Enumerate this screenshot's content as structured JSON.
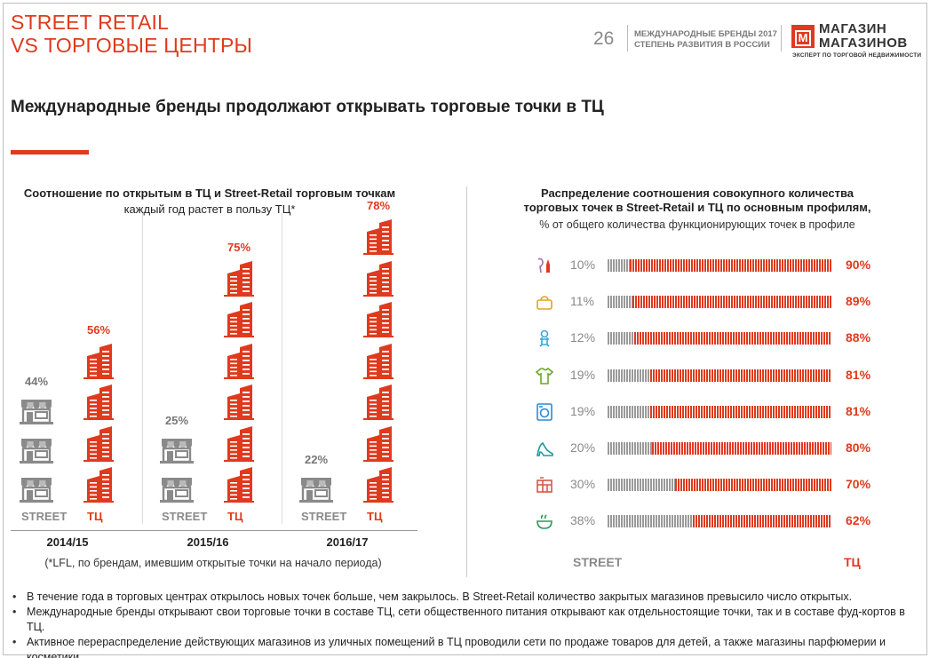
{
  "header": {
    "title_line1": "STREET RETAIL",
    "title_line2": "VS ТОРГОВЫЕ ЦЕНТРЫ",
    "page_number": "26",
    "report_line1": "МЕЖДУНАРОДНЫЕ БРЕНДЫ 2017",
    "report_line2": "СТЕПЕНЬ РАЗВИТИЯ В РОССИИ",
    "logo_letter": "М",
    "logo_line1": "МАГАЗИН",
    "logo_line2": "МАГАЗИНОВ",
    "logo_tagline": "ЭКСПЕРТ ПО ТОРГОВОЙ НЕДВИЖИМОСТИ"
  },
  "headline": "Международные бренды продолжают открывать торговые точки в ТЦ",
  "colors": {
    "accent": "#e03a1e",
    "grey": "#8a8a8a"
  },
  "left_chart": {
    "title": "Соотношение по открытым в ТЦ и Street-Retail торговым точкам",
    "subtitle": "каждый год растет в пользу ТЦ*",
    "street_label": "STREET",
    "tc_label": "ТЦ",
    "footnote": "(*LFL, по брендам, имевшим открытые точки на начало периода)"
  },
  "right_chart": {
    "title_line1": "Распределение соотношения совокупного количества",
    "title_line2": "торговых точек в Street-Retail и ТЦ по основным профилям,",
    "subtitle": "% от общего количества функционирующих точек в профиле",
    "street_label": "STREET",
    "tc_label": "ТЦ"
  },
  "chart_data": [
    {
      "type": "bar",
      "title": "Соотношение по открытым в ТЦ и Street-Retail торговым точкам",
      "categories": [
        "2014/15",
        "2015/16",
        "2016/17"
      ],
      "series": [
        {
          "name": "STREET",
          "values": [
            44,
            25,
            22
          ],
          "labels": [
            "44%",
            "25%",
            "22%"
          ],
          "icon_counts": [
            3,
            2,
            1
          ]
        },
        {
          "name": "ТЦ",
          "values": [
            56,
            75,
            78
          ],
          "labels": [
            "56%",
            "75%",
            "78%"
          ],
          "icon_counts": [
            4,
            6,
            7
          ]
        }
      ],
      "ylabel": "%"
    },
    {
      "type": "bar",
      "title": "Распределение соотношения совокупного количества торговых точек в Street-Retail и ТЦ по основным профилям",
      "categories": [
        "cosmetics-icon",
        "bag-icon",
        "kids-icon",
        "clothing-icon",
        "appliance-icon",
        "shoe-icon",
        "home-icon",
        "food-icon"
      ],
      "series": [
        {
          "name": "STREET",
          "values": [
            10,
            11,
            12,
            19,
            19,
            20,
            30,
            38
          ],
          "labels": [
            "10%",
            "11%",
            "12%",
            "19%",
            "19%",
            "20%",
            "30%",
            "38%"
          ]
        },
        {
          "name": "ТЦ",
          "values": [
            90,
            89,
            88,
            81,
            81,
            80,
            70,
            62
          ],
          "labels": [
            "90%",
            "89%",
            "88%",
            "81%",
            "81%",
            "80%",
            "70%",
            "62%"
          ]
        }
      ],
      "xlim": [
        0,
        100
      ]
    }
  ],
  "bullets": [
    "В течение года в торговых центрах открылось новых точек больше, чем закрылось. В Street-Retail количество закрытых магазинов превысило число открытых.",
    "Международные бренды открывают свои торговые точки в составе ТЦ, сети общественного питания открывают как отдельностоящие точки, так и в составе фуд-кортов в ТЦ.",
    "Активное перераспределение действующих магазинов из уличных помещений в ТЦ проводили сети по продаже товаров для детей, а также магазины парфюмерии и косметики."
  ]
}
